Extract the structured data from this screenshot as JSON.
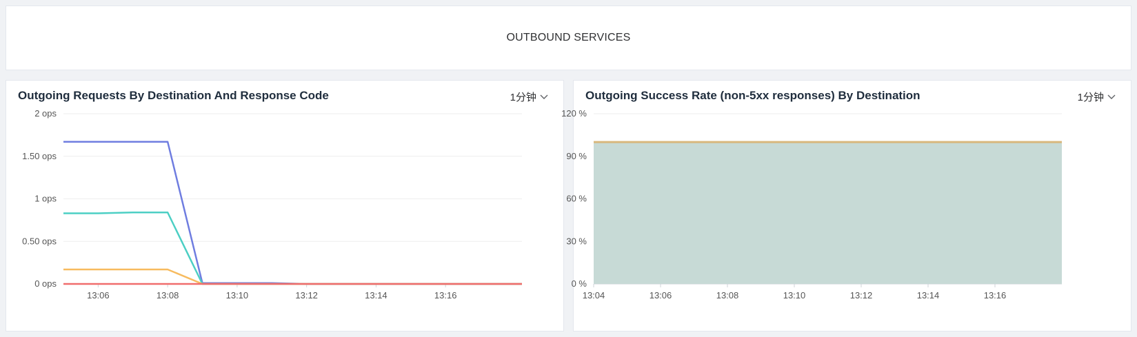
{
  "header": {
    "title": "OUTBOUND SERVICES"
  },
  "panels": {
    "left": {
      "title": "Outgoing Requests By Destination And Response Code",
      "interval": "1分钟"
    },
    "right": {
      "title": "Outgoing Success Rate (non-5xx responses) By Destination",
      "interval": "1分钟"
    }
  },
  "colors": {
    "blue": "#6f7de0",
    "teal": "#4ccfc4",
    "orange": "#f7bb5f",
    "red": "#f06d6d",
    "gold": "#d9b87c",
    "fill": "#c7dad6",
    "grid": "#eeeeee",
    "axis": "#cfd3da"
  },
  "chart_data": [
    {
      "type": "line",
      "yticks": [
        "2 ops",
        "1.50 ops",
        "1 ops",
        "0.50 ops",
        "0 ops"
      ],
      "xticks": [
        "13:06",
        "13:08",
        "13:10",
        "13:12",
        "13:14",
        "13:16"
      ],
      "xtick_values": [
        6,
        8,
        10,
        12,
        14,
        16
      ],
      "xlim": [
        5,
        18.2
      ],
      "ylim": [
        0,
        2
      ],
      "grid": true,
      "series": [
        {
          "color": "blue",
          "x": [
            5,
            8,
            9,
            11,
            12,
            18.2
          ],
          "y": [
            1.67,
            1.67,
            0.01,
            0.01,
            0,
            0
          ]
        },
        {
          "color": "teal",
          "x": [
            5,
            6,
            7,
            8,
            9,
            18.2
          ],
          "y": [
            0.83,
            0.83,
            0.84,
            0.84,
            0,
            0
          ]
        },
        {
          "color": "orange",
          "x": [
            5,
            8,
            9,
            18.2
          ],
          "y": [
            0.17,
            0.17,
            0,
            0
          ]
        },
        {
          "color": "red",
          "x": [
            5,
            18.2
          ],
          "y": [
            0,
            0
          ]
        }
      ]
    },
    {
      "type": "area",
      "yticks": [
        "120 %",
        "90 %",
        "60 %",
        "30 %",
        "0 %"
      ],
      "xticks": [
        "13:04",
        "13:06",
        "13:08",
        "13:10",
        "13:12",
        "13:14",
        "13:16"
      ],
      "xtick_values": [
        4,
        6,
        8,
        10,
        12,
        14,
        16
      ],
      "xlim": [
        4,
        18
      ],
      "ylim": [
        0,
        120
      ],
      "grid": true,
      "series": [
        {
          "color": "gold",
          "fill": "fill",
          "x": [
            4,
            18
          ],
          "y": [
            100,
            100
          ]
        }
      ]
    }
  ]
}
